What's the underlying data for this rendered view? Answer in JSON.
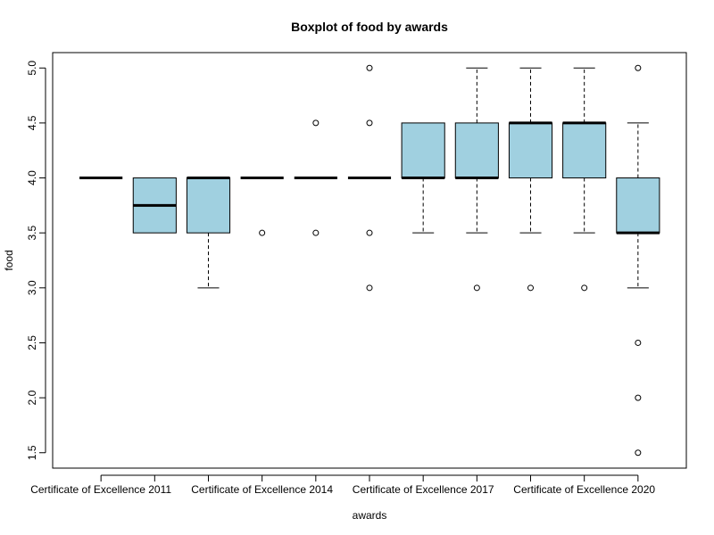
{
  "chart_data": {
    "type": "box",
    "title": "Boxplot of food by awards",
    "xlabel": "awards",
    "ylabel": "food",
    "ylim": [
      1.36,
      5.14
    ],
    "yticks": [
      1.5,
      2.0,
      2.5,
      3.0,
      3.5,
      4.0,
      4.5,
      5.0
    ],
    "ytick_labels": [
      "1.5",
      "2.0",
      "2.5",
      "3.0",
      "3.5",
      "4.0",
      "4.5",
      "5.0"
    ],
    "xtick_labels_shown": [
      {
        "index": 1,
        "label": "Certificate of Excellence 2011"
      },
      {
        "index": 4,
        "label": "Certificate of Excellence 2014"
      },
      {
        "index": 7,
        "label": "Certificate of Excellence 2017"
      },
      {
        "index": 10,
        "label": "Certificate of Excellence 2020"
      }
    ],
    "grid": false,
    "box_color": "#a0d0e0",
    "boxes": [
      {
        "q1": 4.0,
        "median": 4.0,
        "q3": 4.0,
        "whisker_low": 4.0,
        "whisker_high": 4.0,
        "outliers": []
      },
      {
        "q1": 3.5,
        "median": 3.75,
        "q3": 4.0,
        "whisker_low": 3.5,
        "whisker_high": 4.0,
        "outliers": []
      },
      {
        "q1": 3.5,
        "median": 4.0,
        "q3": 4.0,
        "whisker_low": 3.0,
        "whisker_high": 4.0,
        "outliers": []
      },
      {
        "q1": 4.0,
        "median": 4.0,
        "q3": 4.0,
        "whisker_low": 4.0,
        "whisker_high": 4.0,
        "outliers": [
          3.5
        ]
      },
      {
        "q1": 4.0,
        "median": 4.0,
        "q3": 4.0,
        "whisker_low": 4.0,
        "whisker_high": 4.0,
        "outliers": [
          3.5,
          4.5
        ]
      },
      {
        "q1": 4.0,
        "median": 4.0,
        "q3": 4.0,
        "whisker_low": 4.0,
        "whisker_high": 4.0,
        "outliers": [
          3.0,
          3.5,
          4.5,
          5.0
        ]
      },
      {
        "q1": 4.0,
        "median": 4.0,
        "q3": 4.5,
        "whisker_low": 3.5,
        "whisker_high": 4.5,
        "outliers": []
      },
      {
        "q1": 4.0,
        "median": 4.0,
        "q3": 4.5,
        "whisker_low": 3.5,
        "whisker_high": 5.0,
        "outliers": [
          3.0
        ]
      },
      {
        "q1": 4.0,
        "median": 4.5,
        "q3": 4.5,
        "whisker_low": 3.5,
        "whisker_high": 5.0,
        "outliers": [
          3.0
        ]
      },
      {
        "q1": 4.0,
        "median": 4.5,
        "q3": 4.5,
        "whisker_low": 3.5,
        "whisker_high": 5.0,
        "outliers": [
          3.0
        ]
      },
      {
        "q1": 3.5,
        "median": 3.5,
        "q3": 4.0,
        "whisker_low": 3.0,
        "whisker_high": 4.5,
        "outliers": [
          1.5,
          2.0,
          2.5,
          5.0
        ]
      }
    ]
  }
}
